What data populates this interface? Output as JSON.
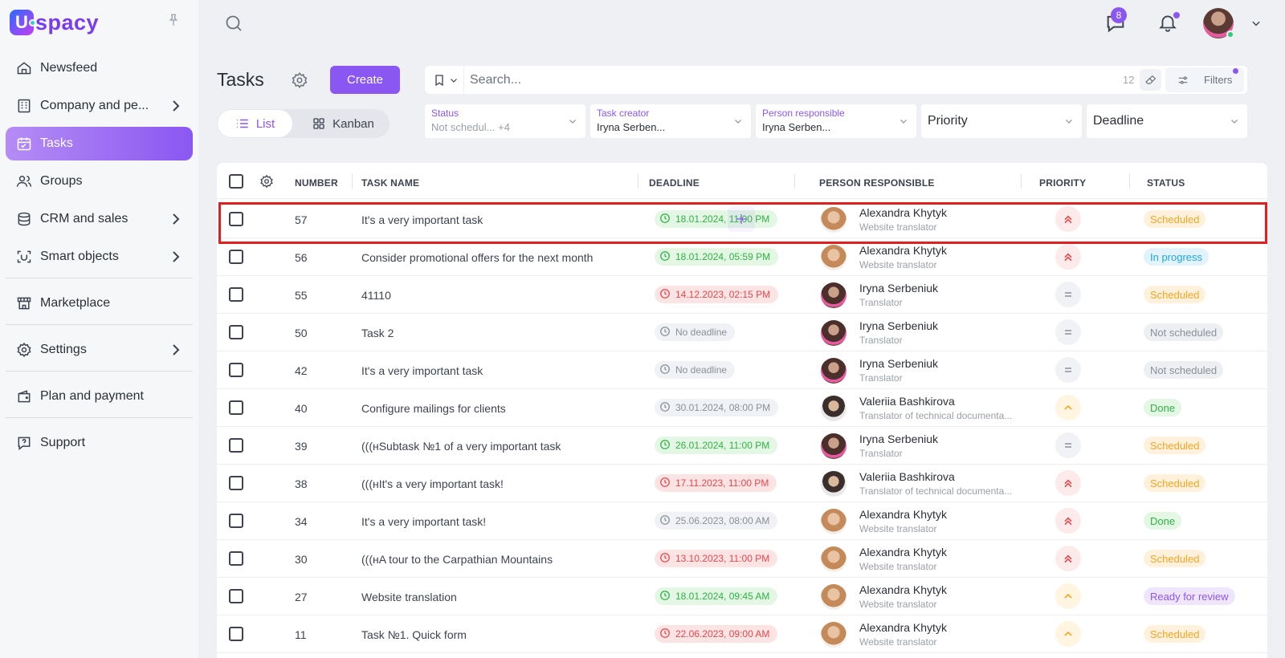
{
  "app": {
    "logo_text": "spacy",
    "logo_letter": "U"
  },
  "sidebar": {
    "items": [
      {
        "label": "Newsfeed",
        "icon": "home-icon"
      },
      {
        "label": "Company and pe...",
        "icon": "building-icon",
        "has_children": true
      },
      {
        "label": "Tasks",
        "icon": "calendar-icon",
        "active": true
      },
      {
        "label": "Groups",
        "icon": "users-icon"
      },
      {
        "label": "CRM and sales",
        "icon": "database-icon",
        "has_children": true
      },
      {
        "label": "Smart objects",
        "icon": "scan-icon",
        "has_children": true
      },
      {
        "label": "Marketplace",
        "icon": "store-icon"
      },
      {
        "label": "Settings",
        "icon": "gear-icon",
        "has_children": true
      },
      {
        "label": "Plan and payment",
        "icon": "wallet-icon"
      },
      {
        "label": "Support",
        "icon": "help-icon"
      }
    ]
  },
  "topbar": {
    "messages_count": "8"
  },
  "page": {
    "title": "Tasks",
    "create_label": "Create"
  },
  "views": {
    "list_label": "List",
    "kanban_label": "Kanban",
    "active": "list"
  },
  "search": {
    "placeholder": "Search...",
    "count": "12",
    "filters_label": "Filters"
  },
  "filters": {
    "status": {
      "label": "Status",
      "value": "Not schedul...",
      "extra": "+4"
    },
    "creator": {
      "label": "Task creator",
      "value": "Iryna Serben..."
    },
    "responsible": {
      "label": "Person responsible",
      "value": "Iryna Serben..."
    },
    "priority": {
      "value": "Priority"
    },
    "deadline": {
      "value": "Deadline"
    }
  },
  "table": {
    "columns": [
      "NUMBER",
      "TASK NAME",
      "DEADLINE",
      "PERSON RESPONSIBLE",
      "PRIORITY",
      "STATUS"
    ],
    "rows": [
      {
        "number": "57",
        "name": "It's a very important task",
        "deadline": "18.01.2024, 11:00 PM",
        "deadline_color": "green",
        "person": "Alexandra Khytyk",
        "role": "Website translator",
        "avatar": "a",
        "priority": "high",
        "status": "Scheduled",
        "status_type": "scheduled",
        "highlighted": true
      },
      {
        "number": "56",
        "name": "Consider promotional offers for the next month",
        "deadline": "18.01.2024, 05:59 PM",
        "deadline_color": "green",
        "person": "Alexandra Khytyk",
        "role": "Website translator",
        "avatar": "a",
        "priority": "high",
        "status": "In progress",
        "status_type": "progress"
      },
      {
        "number": "55",
        "name": "41110",
        "deadline": "14.12.2023, 02:15 PM",
        "deadline_color": "red",
        "person": "Iryna Serbeniuk",
        "role": "Translator",
        "avatar": "i",
        "priority": "mid",
        "status": "Scheduled",
        "status_type": "scheduled"
      },
      {
        "number": "50",
        "name": "Task 2",
        "deadline": "No deadline",
        "deadline_color": "gray",
        "person": "Iryna Serbeniuk",
        "role": "Translator",
        "avatar": "i",
        "priority": "mid",
        "status": "Not scheduled",
        "status_type": "not"
      },
      {
        "number": "42",
        "name": "It's a very important task",
        "deadline": "No deadline",
        "deadline_color": "gray",
        "person": "Iryna Serbeniuk",
        "role": "Translator",
        "avatar": "i",
        "priority": "mid",
        "status": "Not scheduled",
        "status_type": "not"
      },
      {
        "number": "40",
        "name": "Configure mailings for clients",
        "deadline": "30.01.2024, 08:00 PM",
        "deadline_color": "gray",
        "person": "Valeriia Bashkirova",
        "role": "Translator of technical documenta...",
        "avatar": "v",
        "priority": "low",
        "status": "Done",
        "status_type": "done"
      },
      {
        "number": "39",
        "name": "(((нSubtask №1 of a very important task",
        "deadline": "26.01.2024, 11:00 PM",
        "deadline_color": "green",
        "person": "Iryna Serbeniuk",
        "role": "Translator",
        "avatar": "i",
        "priority": "mid",
        "status": "Scheduled",
        "status_type": "scheduled"
      },
      {
        "number": "38",
        "name": "(((нIt's a very important task!",
        "deadline": "17.11.2023, 11:00 PM",
        "deadline_color": "red",
        "person": "Valeriia Bashkirova",
        "role": "Translator of technical documenta...",
        "avatar": "v",
        "priority": "high",
        "status": "Scheduled",
        "status_type": "scheduled"
      },
      {
        "number": "34",
        "name": "It's a very important task!",
        "deadline": "25.06.2023, 08:00 AM",
        "deadline_color": "gray",
        "person": "Alexandra Khytyk",
        "role": "Website translator",
        "avatar": "a",
        "priority": "high",
        "status": "Done",
        "status_type": "done"
      },
      {
        "number": "30",
        "name": "(((нA tour to the Carpathian Mountains",
        "deadline": "13.10.2023, 11:00 PM",
        "deadline_color": "red",
        "person": "Alexandra Khytyk",
        "role": "Website translator",
        "avatar": "a",
        "priority": "high",
        "status": "Scheduled",
        "status_type": "scheduled"
      },
      {
        "number": "27",
        "name": "Website translation",
        "deadline": "18.01.2024, 09:45 AM",
        "deadline_color": "green",
        "person": "Alexandra Khytyk",
        "role": "Website translator",
        "avatar": "a",
        "priority": "low",
        "status": "Ready for review",
        "status_type": "review"
      },
      {
        "number": "11",
        "name": "Task №1. Quick form",
        "deadline": "22.06.2023, 09:00 AM",
        "deadline_color": "red",
        "person": "Alexandra Khytyk",
        "role": "Website translator",
        "avatar": "a",
        "priority": "low",
        "status": "Scheduled",
        "status_type": "scheduled"
      }
    ]
  }
}
